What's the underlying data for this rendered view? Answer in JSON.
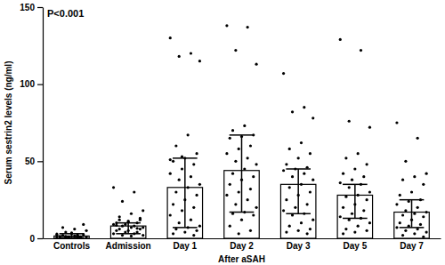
{
  "chart_data": {
    "type": "bar",
    "annotation": "P<0.001",
    "y_label": "Serum sestrin2 levels (ng/ml)",
    "x_label": "After aSAH",
    "categories": [
      "Controls",
      "Admission",
      "Day 1",
      "Day 2",
      "Day 3",
      "Day 5",
      "Day 7"
    ],
    "values": [
      1.5,
      8,
      33,
      44,
      35,
      28,
      17
    ],
    "lower": [
      0.5,
      3,
      7,
      17,
      16,
      13,
      7
    ],
    "upper": [
      3,
      10,
      52,
      67,
      45,
      35,
      25
    ],
    "points": [
      [
        0.5,
        1,
        1.2,
        0.8,
        1.5,
        2,
        2.5,
        3,
        0.3,
        0.6,
        1,
        1.8,
        2.2,
        4,
        5,
        6,
        7,
        9,
        3.5,
        1.3,
        0.9,
        0.4,
        2.8,
        1.1,
        0.7
      ],
      [
        33,
        30,
        24,
        18,
        16,
        14,
        12,
        11,
        10,
        10,
        9,
        9,
        8,
        8,
        7,
        7,
        6,
        6,
        5,
        5,
        4,
        4,
        3,
        3,
        2,
        2,
        1.5,
        12,
        13,
        11,
        8.5,
        6.5
      ],
      [
        130,
        120,
        118,
        115,
        67,
        60,
        55,
        52,
        50,
        48,
        45,
        42,
        40,
        38,
        35,
        33,
        30,
        28,
        25,
        22,
        20,
        18,
        15,
        12,
        10,
        8,
        7,
        6,
        5,
        4,
        3,
        2,
        53,
        51
      ],
      [
        138,
        137,
        122,
        113,
        73,
        70,
        67,
        66,
        65,
        60,
        58,
        55,
        52,
        50,
        48,
        45,
        42,
        40,
        38,
        35,
        32,
        30,
        28,
        25,
        22,
        20,
        17,
        16,
        15,
        12,
        8,
        5,
        3
      ],
      [
        107,
        85,
        82,
        78,
        62,
        58,
        55,
        52,
        48,
        46,
        45,
        44,
        42,
        40,
        38,
        35,
        33,
        30,
        28,
        25,
        22,
        20,
        18,
        16,
        15,
        12,
        10,
        8,
        6,
        5,
        4,
        3
      ],
      [
        129,
        122,
        76,
        72,
        55,
        52,
        48,
        45,
        42,
        40,
        38,
        36,
        35,
        33,
        30,
        28,
        27,
        25,
        22,
        20,
        18,
        16,
        14,
        13,
        12,
        10,
        8,
        6,
        5,
        4,
        3
      ],
      [
        75,
        65,
        50,
        42,
        40,
        38,
        35,
        30,
        28,
        25,
        24,
        22,
        20,
        18,
        17,
        16,
        15,
        14,
        12,
        10,
        9,
        8,
        7,
        6,
        5,
        4,
        3,
        2,
        1
      ]
    ],
    "color": "#ffffff",
    "ylim": [
      0,
      150
    ],
    "yticks": [
      0,
      50,
      100,
      150
    ],
    "grid": false
  }
}
